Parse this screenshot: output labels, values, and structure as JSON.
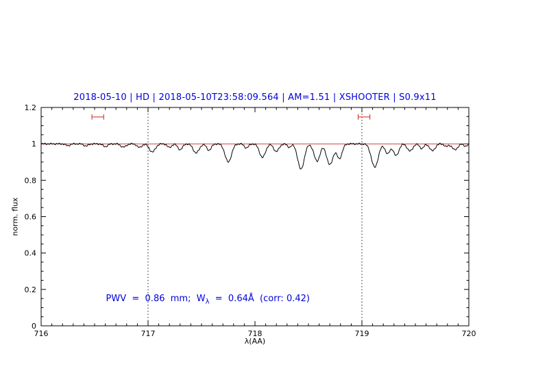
{
  "figure": {
    "title": "2018-05-10 | HD | 2018-05-10T23:58:09.564 | AM=1.51 | XSHOOTER | S0.9x11",
    "title_color": "#0000dd",
    "annotation": {
      "pre": "PWV  =  0.86  mm;  W",
      "sub": "λ",
      "post": "  =  0.64Å  (corr: 0.42)",
      "color": "#0000dd"
    }
  },
  "chart_data": {
    "type": "line",
    "title": "2018-05-10 | HD | 2018-05-10T23:58:09.564 | AM=1.51 | XSHOOTER | S0.9x11",
    "xlabel": "λ(AA)",
    "ylabel": "norm. flux",
    "xlim": [
      716,
      720
    ],
    "ylim": [
      0,
      1.2
    ],
    "x_ticks": [
      716,
      717,
      718,
      719,
      720
    ],
    "x_tick_labels": [
      "716",
      "717",
      "718",
      "719",
      "720"
    ],
    "x_minor_step": 0.1,
    "y_ticks": [
      0,
      0.2,
      0.4,
      0.6,
      0.8,
      1,
      1.2
    ],
    "y_tick_labels": [
      "0",
      "0.2",
      "0.4",
      "0.6",
      "0.8",
      "1",
      "1.2"
    ],
    "y_minor_step": 0.05,
    "grid": "off",
    "dotted_lines_x": [
      717,
      719
    ],
    "dotted_line_color": "#000000",
    "continuum": {
      "y": 1.0,
      "color": "#cc2222"
    },
    "spectrum_color": "#000000",
    "baseline_flux": 1.0,
    "noise_amplitude": 0.003,
    "range_markers": [
      {
        "x_center": 716.53,
        "x_halfwidth": 0.055,
        "y": 1.148
      },
      {
        "x_center": 719.02,
        "x_halfwidth": 0.055,
        "y": 1.148
      }
    ],
    "marker_color": "#cc2222",
    "absorption_lines_columns": [
      "center_AA",
      "depth",
      "sigma_AA"
    ],
    "absorption_lines": [
      [
        716.25,
        0.01,
        0.02
      ],
      [
        716.42,
        0.012,
        0.02
      ],
      [
        716.6,
        0.015,
        0.022
      ],
      [
        716.77,
        0.018,
        0.025
      ],
      [
        716.92,
        0.02,
        0.022
      ],
      [
        717.04,
        0.045,
        0.028
      ],
      [
        717.2,
        0.02,
        0.02
      ],
      [
        717.3,
        0.032,
        0.022
      ],
      [
        717.45,
        0.05,
        0.028
      ],
      [
        717.57,
        0.035,
        0.022
      ],
      [
        717.75,
        0.1,
        0.03
      ],
      [
        717.92,
        0.022,
        0.02
      ],
      [
        718.07,
        0.075,
        0.028
      ],
      [
        718.2,
        0.042,
        0.025
      ],
      [
        718.32,
        0.018,
        0.018
      ],
      [
        718.43,
        0.14,
        0.03
      ],
      [
        718.58,
        0.095,
        0.028
      ],
      [
        718.7,
        0.115,
        0.03
      ],
      [
        718.79,
        0.08,
        0.025
      ],
      [
        719.12,
        0.128,
        0.032
      ],
      [
        719.24,
        0.055,
        0.022
      ],
      [
        719.32,
        0.065,
        0.025
      ],
      [
        719.45,
        0.04,
        0.025
      ],
      [
        719.56,
        0.025,
        0.02
      ],
      [
        719.66,
        0.038,
        0.025
      ],
      [
        719.79,
        0.015,
        0.018
      ],
      [
        719.87,
        0.033,
        0.025
      ],
      [
        719.97,
        0.012,
        0.018
      ]
    ]
  }
}
